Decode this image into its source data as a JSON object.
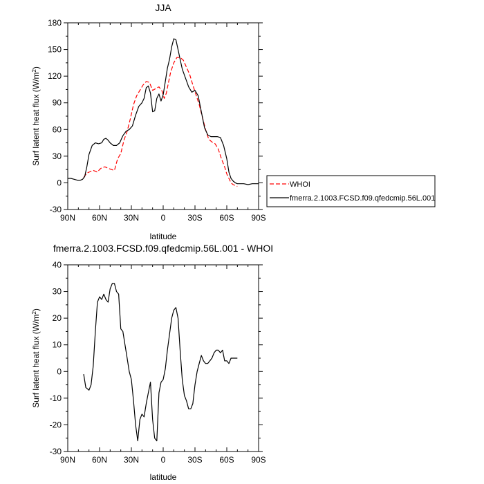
{
  "chart_data": [
    {
      "type": "line",
      "title": "JJA",
      "xlabel": "latitude",
      "ylabel": "Surf latent heat flux (W/m",
      "ylabel_sup": "2",
      "ylabel_close": ")",
      "xlim": [
        90,
        -90
      ],
      "ylim": [
        -30,
        180
      ],
      "x_ticks": [
        90,
        60,
        30,
        0,
        -30,
        -60,
        -90
      ],
      "x_tick_labels": [
        "90N",
        "60N",
        "30N",
        "0",
        "30S",
        "60S",
        "90S"
      ],
      "y_ticks": [
        -30,
        0,
        30,
        60,
        90,
        120,
        150,
        180
      ],
      "y_tick_labels": [
        "-30",
        "0",
        "30",
        "60",
        "90",
        "120",
        "150",
        "180"
      ],
      "legend": {
        "placement": "right",
        "border": true
      },
      "series": [
        {
          "name": "WHOI",
          "color": "#ff0000",
          "dash": true,
          "x": [
            75,
            72,
            70,
            66,
            62,
            60,
            58,
            55,
            53,
            51,
            49,
            46,
            43,
            40,
            37,
            34,
            31,
            28,
            25,
            22,
            19,
            16,
            13,
            10,
            7,
            4,
            1,
            -1,
            -3,
            -5,
            -7,
            -10,
            -13,
            -16,
            -19,
            -22,
            -25,
            -28,
            -31,
            -34,
            -37,
            -40,
            -43,
            -46,
            -49,
            -52,
            -55,
            -58,
            -60,
            -62,
            -64,
            -66,
            -68,
            -70
          ],
          "values": [
            6,
            11,
            12,
            14,
            12,
            15,
            17,
            18,
            17,
            16,
            15,
            14,
            27,
            33,
            48,
            58,
            72,
            88,
            98,
            104,
            110,
            114,
            113,
            104,
            106,
            108,
            103,
            95,
            101,
            113,
            124,
            135,
            141,
            141,
            138,
            130,
            122,
            110,
            99,
            88,
            74,
            60,
            49,
            46,
            44,
            38,
            27,
            18,
            10,
            5,
            0,
            -2,
            -3,
            -4
          ]
        },
        {
          "name": "fmerra.2.1003.FCSD.f09.qfedcmip.56L.001",
          "color": "#000000",
          "dash": false,
          "x": [
            90,
            87,
            84,
            81,
            78,
            76,
            74,
            72,
            70,
            67,
            64,
            61,
            58,
            56,
            54,
            52,
            50,
            47,
            44,
            41,
            38,
            35,
            32,
            29,
            26,
            23,
            20,
            18,
            16,
            14,
            12,
            10,
            8,
            6,
            4,
            2,
            0,
            -2,
            -4,
            -6,
            -8,
            -10,
            -12,
            -14,
            -16,
            -18,
            -21,
            -24,
            -27,
            -30,
            -33,
            -36,
            -39,
            -42,
            -45,
            -48,
            -51,
            -54,
            -57,
            -60,
            -62,
            -64,
            -66,
            -68,
            -70,
            -73,
            -76,
            -80,
            -84,
            -87,
            -90
          ],
          "values": [
            5,
            5,
            4,
            3,
            3,
            4,
            7,
            18,
            32,
            42,
            45,
            44,
            45,
            49,
            50,
            48,
            45,
            42,
            42,
            45,
            53,
            58,
            60,
            64,
            76,
            86,
            90,
            95,
            107,
            109,
            101,
            80,
            81,
            95,
            100,
            92,
            99,
            114,
            129,
            139,
            153,
            162,
            161,
            150,
            139,
            128,
            118,
            108,
            102,
            104,
            98,
            80,
            62,
            54,
            52,
            52,
            52,
            51,
            42,
            27,
            12,
            5,
            2,
            0,
            -1,
            -1,
            -1,
            -2,
            -1,
            -1,
            -1
          ]
        }
      ]
    },
    {
      "type": "line",
      "title": "fmerra.2.1003.FCSD.f09.qfedcmip.56L.001 - WHOI",
      "xlabel": "latitude",
      "ylabel": "Surf latent heat flux (W/m",
      "ylabel_sup": "2",
      "ylabel_close": ")",
      "xlim": [
        90,
        -90
      ],
      "ylim": [
        -30,
        40
      ],
      "x_ticks": [
        90,
        60,
        30,
        0,
        -30,
        -60,
        -90
      ],
      "x_tick_labels": [
        "90N",
        "60N",
        "30N",
        "0",
        "30S",
        "60S",
        "90S"
      ],
      "y_ticks": [
        -30,
        -20,
        -10,
        0,
        10,
        20,
        30,
        40
      ],
      "y_tick_labels": [
        "-30",
        "-20",
        "-10",
        "0",
        "10",
        "20",
        "30",
        "40"
      ],
      "series": [
        {
          "color": "#000000",
          "x": [
            75,
            73,
            70,
            68,
            66,
            64,
            62,
            60,
            58,
            56,
            54,
            52,
            50,
            48,
            46,
            44,
            42,
            40,
            38,
            36,
            34,
            32,
            30,
            28,
            26,
            24,
            22,
            20,
            18,
            16,
            14,
            12,
            10,
            8,
            6,
            4,
            2,
            0,
            -2,
            -4,
            -6,
            -8,
            -10,
            -12,
            -14,
            -16,
            -18,
            -20,
            -22,
            -24,
            -26,
            -28,
            -30,
            -32,
            -34,
            -36,
            -38,
            -40,
            -42,
            -44,
            -46,
            -48,
            -50,
            -52,
            -54,
            -56,
            -58,
            -60,
            -62,
            -64,
            -66,
            -68,
            -70
          ],
          "values": [
            -1,
            -6,
            -7,
            -5,
            2,
            15,
            26,
            28,
            27,
            29,
            27,
            26,
            31,
            33,
            33,
            30,
            29,
            16,
            15,
            10,
            5,
            0,
            -3,
            -11,
            -20,
            -26,
            -18,
            -16,
            -17,
            -12,
            -8,
            -4,
            -18,
            -25,
            -26,
            -8,
            -4,
            -3,
            1,
            8,
            14,
            20,
            23,
            24,
            20,
            8,
            -3,
            -9,
            -11,
            -14,
            -14,
            -12,
            -5,
            0,
            3,
            6,
            4,
            3,
            3,
            4,
            5,
            7,
            8,
            8,
            7,
            8,
            4,
            4,
            3,
            5,
            5,
            5,
            5
          ]
        }
      ]
    }
  ]
}
